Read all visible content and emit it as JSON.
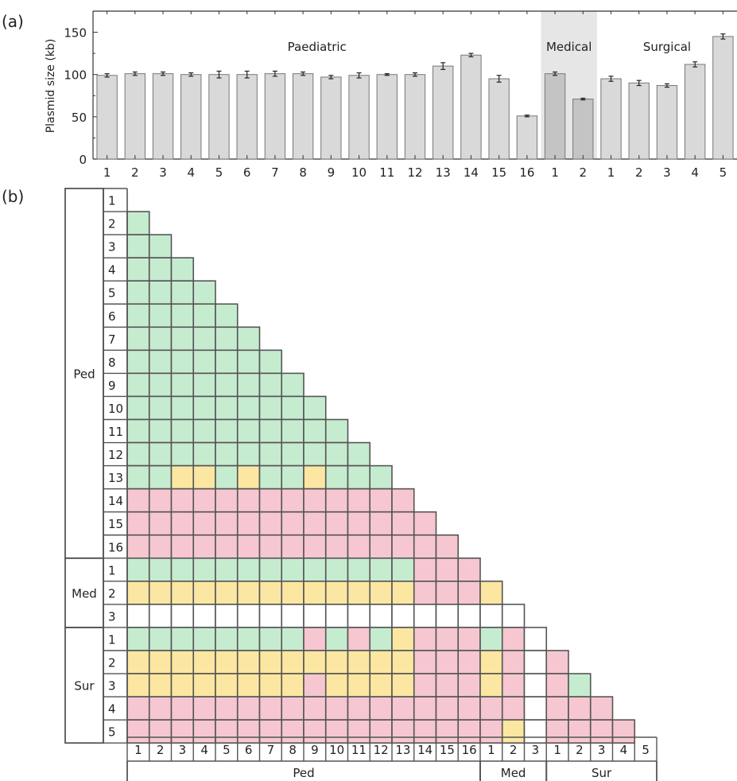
{
  "panel_a_label": "(a)",
  "panel_b_label": "(b)",
  "colors": {
    "green": "#c6ecd0",
    "yellow": "#fbe7a1",
    "pink": "#f6c7d0",
    "white": "#ffffff",
    "bar": "#d9d9d9",
    "bar_highlight": "#c4c4c4",
    "highlight_bg": "#e6e6e6",
    "grid": "#555555"
  },
  "chart_data": [
    {
      "type": "bar",
      "ylabel": "Plasmid size (kb)",
      "ylim": [
        0,
        175
      ],
      "yticks": [
        0,
        50,
        100,
        150
      ],
      "groups": [
        {
          "name": "Paediatric",
          "count": 16,
          "highlighted": false
        },
        {
          "name": "Medical",
          "count": 2,
          "highlighted": true
        },
        {
          "name": "Surgical",
          "count": 5,
          "highlighted": false
        }
      ],
      "categories": [
        "1",
        "2",
        "3",
        "4",
        "5",
        "6",
        "7",
        "8",
        "9",
        "10",
        "11",
        "12",
        "13",
        "14",
        "15",
        "16",
        "1",
        "2",
        "1",
        "2",
        "3",
        "4",
        "5"
      ],
      "values": [
        99,
        101,
        101,
        100,
        100,
        100,
        101,
        101,
        97,
        99,
        100,
        100,
        110,
        123,
        95,
        51,
        101,
        71,
        95,
        90,
        87,
        112,
        145
      ],
      "errors": [
        2,
        2,
        2,
        2,
        4,
        4,
        3,
        2,
        2,
        3,
        1,
        2,
        4,
        2,
        4,
        1,
        2,
        1,
        3,
        3,
        2,
        3,
        3
      ]
    },
    {
      "type": "heatmap",
      "groups": [
        {
          "label": "Ped",
          "count": 16
        },
        {
          "label": "Med",
          "count": 3
        },
        {
          "label": "Sur",
          "count": 5
        }
      ],
      "row_labels": [
        "1",
        "2",
        "3",
        "4",
        "5",
        "6",
        "7",
        "8",
        "9",
        "10",
        "11",
        "12",
        "13",
        "14",
        "15",
        "16",
        "1",
        "2",
        "3",
        "1",
        "2",
        "3",
        "4",
        "5"
      ],
      "col_labels": [
        "1",
        "2",
        "3",
        "4",
        "5",
        "6",
        "7",
        "8",
        "9",
        "10",
        "11",
        "12",
        "13",
        "14",
        "15",
        "16",
        "1",
        "2",
        "3",
        "1",
        "2",
        "3",
        "4",
        "5"
      ],
      "legend": {
        "G": "green",
        "Y": "yellow",
        "P": "pink",
        "W": "white"
      },
      "matrix": [
        "",
        "G",
        "GG",
        "GGG",
        "GGGG",
        "GGGGG",
        "GGGGGG",
        "GGGGGGG",
        "GGGGGGGG",
        "GGGGGGGGG",
        "GGGGGGGGGG",
        "GGGGGGGGGGG",
        "GGYYGYGGYGGG",
        "PPPPPPPPPPPPP",
        "PPPPPPPPPPPPPP",
        "PPPPPPPPPPPPPPP",
        "GGGGGGGGGGGGGPPP",
        "YYYYYYYYYYYYYPPPY",
        "WWWWWWWWWWWWWWWWWW",
        "GGGGGGGGPGPGYPPPGPW",
        "YYYYYYYYYYYYYPPPYPWP",
        "YYYYYYYYPYYYYPPPYPWPG",
        "PPPPPPPPPPPPPPPPPPWPPP",
        "PPPPPPPPPPPPPPPPPYWPPPP"
      ]
    }
  ]
}
